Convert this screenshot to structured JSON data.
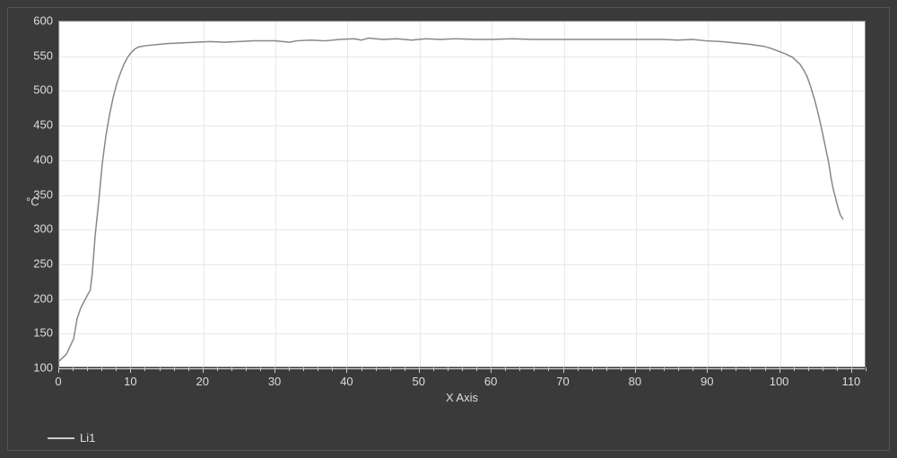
{
  "chart": {
    "type": "line",
    "background_color": "#3a3a3a",
    "plot_background_color": "#ffffff",
    "grid_color": "#e8e8e8",
    "axis_tick_color": "#cccccc",
    "axis_label_color": "#dddddd",
    "series_color": "#888888",
    "series_width": 1.5,
    "x": {
      "label": "X Axis",
      "min": 0,
      "max": 112,
      "tick_major": [
        0,
        10,
        20,
        30,
        40,
        50,
        60,
        70,
        80,
        90,
        100,
        110
      ],
      "tick_minor_step": 2,
      "label_fontsize": 13
    },
    "y": {
      "label": "°C",
      "min": 100,
      "max": 600,
      "tick_major": [
        100,
        150,
        200,
        250,
        300,
        350,
        400,
        450,
        500,
        550,
        600
      ],
      "label_fontsize": 13
    },
    "series": [
      {
        "name": "Li1",
        "points": [
          [
            0,
            108
          ],
          [
            1,
            118
          ],
          [
            2,
            140
          ],
          [
            2.5,
            170
          ],
          [
            3,
            185
          ],
          [
            3.5,
            195
          ],
          [
            4,
            205
          ],
          [
            4.3,
            210
          ],
          [
            4.6,
            235
          ],
          [
            5,
            290
          ],
          [
            5.5,
            340
          ],
          [
            6,
            395
          ],
          [
            6.5,
            435
          ],
          [
            7,
            465
          ],
          [
            7.5,
            490
          ],
          [
            8,
            510
          ],
          [
            8.5,
            525
          ],
          [
            9,
            538
          ],
          [
            9.5,
            548
          ],
          [
            10,
            555
          ],
          [
            10.5,
            560
          ],
          [
            11,
            563
          ],
          [
            12,
            565
          ],
          [
            13,
            566
          ],
          [
            14,
            567
          ],
          [
            15,
            568
          ],
          [
            17,
            569
          ],
          [
            19,
            570
          ],
          [
            21,
            571
          ],
          [
            23,
            570
          ],
          [
            25,
            571
          ],
          [
            27,
            572
          ],
          [
            30,
            572
          ],
          [
            32,
            570
          ],
          [
            33,
            572
          ],
          [
            35,
            573
          ],
          [
            37,
            572
          ],
          [
            39,
            574
          ],
          [
            41,
            575
          ],
          [
            42,
            573
          ],
          [
            43,
            576
          ],
          [
            45,
            574
          ],
          [
            47,
            575
          ],
          [
            49,
            573
          ],
          [
            51,
            575
          ],
          [
            53,
            574
          ],
          [
            55,
            575
          ],
          [
            58,
            574
          ],
          [
            60,
            574
          ],
          [
            63,
            575
          ],
          [
            66,
            574
          ],
          [
            69,
            574
          ],
          [
            72,
            574
          ],
          [
            75,
            574
          ],
          [
            78,
            574
          ],
          [
            81,
            574
          ],
          [
            84,
            574
          ],
          [
            86,
            573
          ],
          [
            88,
            574
          ],
          [
            90,
            572
          ],
          [
            92,
            571
          ],
          [
            94,
            569
          ],
          [
            96,
            567
          ],
          [
            98,
            564
          ],
          [
            99,
            561
          ],
          [
            100,
            557
          ],
          [
            101,
            553
          ],
          [
            102,
            548
          ],
          [
            103,
            538
          ],
          [
            103.5,
            530
          ],
          [
            104,
            520
          ],
          [
            104.5,
            505
          ],
          [
            105,
            488
          ],
          [
            105.5,
            468
          ],
          [
            106,
            445
          ],
          [
            106.5,
            420
          ],
          [
            107,
            395
          ],
          [
            107.3,
            375
          ],
          [
            107.6,
            358
          ],
          [
            108,
            342
          ],
          [
            108.3,
            330
          ],
          [
            108.6,
            320
          ],
          [
            109,
            313
          ]
        ]
      }
    ],
    "legend": {
      "items": [
        {
          "label": "Li1",
          "swatch_color": "#cccccc"
        }
      ]
    }
  }
}
